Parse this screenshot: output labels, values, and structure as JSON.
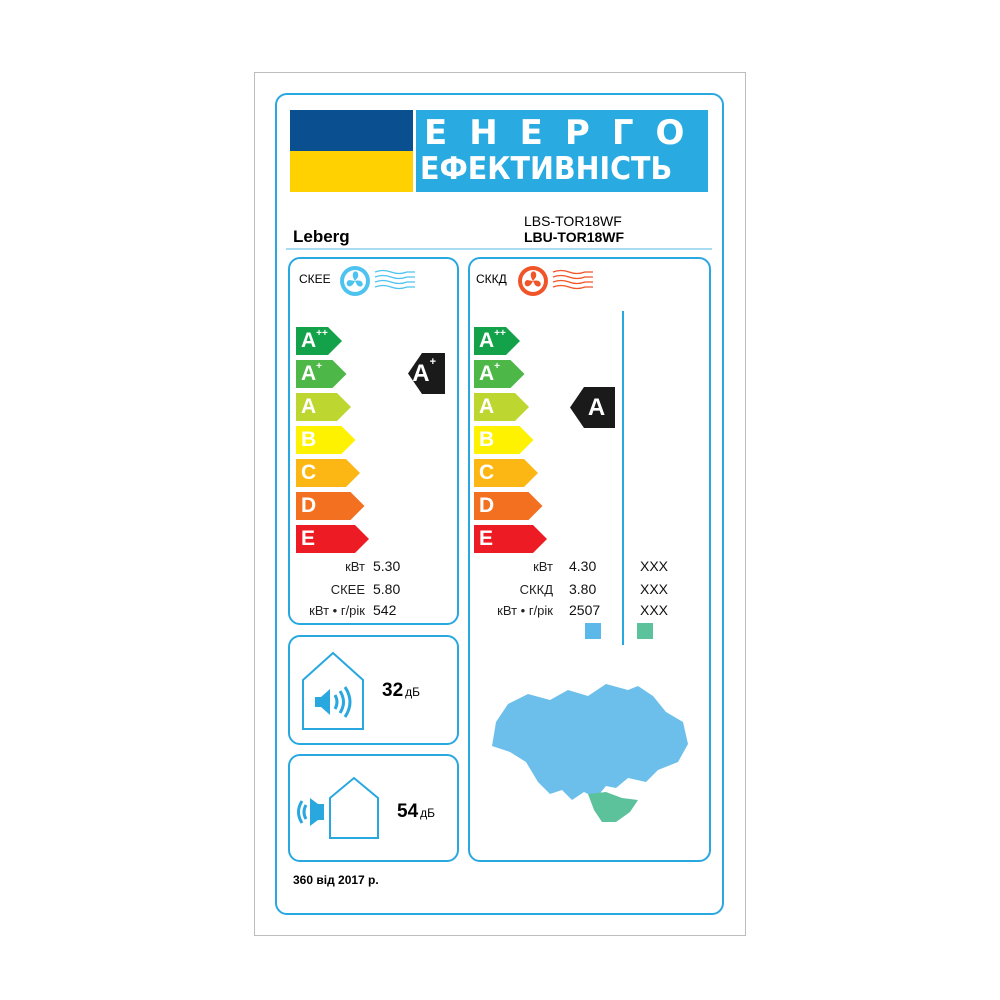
{
  "header": {
    "title_line1": "ЕНЕРГО",
    "title_line2": "ЕФЕКТИВНІСТЬ",
    "flag_colors": [
      "#0a4f8f",
      "#ffd100"
    ],
    "title_bg": "#29abe2"
  },
  "brand": "Leberg",
  "models": {
    "indoor": "LBS-TOR18WF",
    "outdoor": "LBU-TOR18WF"
  },
  "scale": [
    {
      "class": "A",
      "sup": "++",
      "color": "#13a24a"
    },
    {
      "class": "A",
      "sup": "+",
      "color": "#4db748"
    },
    {
      "class": "A",
      "sup": "",
      "color": "#bed630"
    },
    {
      "class": "B",
      "sup": "",
      "color": "#fff200"
    },
    {
      "class": "C",
      "sup": "",
      "color": "#fdb714"
    },
    {
      "class": "D",
      "sup": "",
      "color": "#f37021"
    },
    {
      "class": "E",
      "sup": "",
      "color": "#ed1c24"
    }
  ],
  "cooling": {
    "label": "СКЕЕ",
    "icon": "fan-cool-icon",
    "rating": "A",
    "rating_sup": "+",
    "rows": [
      {
        "label": "кВт",
        "value": "5.30"
      },
      {
        "label": "СКЕЕ",
        "value": "5.80"
      },
      {
        "label": "кВт • г/рік",
        "value": "542"
      }
    ]
  },
  "heating": {
    "label": "СККД",
    "icon": "fan-heat-icon",
    "rating": "A",
    "rating_sup": "",
    "rows": [
      {
        "label": "кВт",
        "value": "4.30",
        "value2": "XXX"
      },
      {
        "label": "СККД",
        "value": "3.80",
        "value2": "XXX"
      },
      {
        "label": "кВт • г/рік",
        "value": "2507",
        "value2": "XXX"
      }
    ],
    "zone_colors": [
      "#5bb8e8",
      "#5cc29c"
    ]
  },
  "noise": {
    "indoor": {
      "value": "32",
      "unit": "дБ"
    },
    "outdoor": {
      "value": "54",
      "unit": "дБ"
    }
  },
  "footer": "360 від 2017 р."
}
